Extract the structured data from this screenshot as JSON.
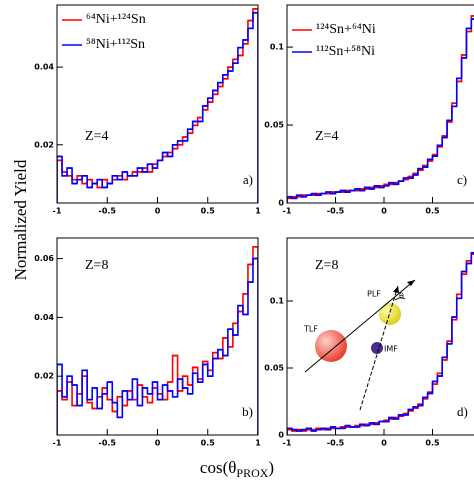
{
  "figure": {
    "ylabel": "Normalized Yield",
    "xlabel_parts": [
      "cos(θ",
      "PROX",
      ")"
    ],
    "diagram": {
      "tlf": "TLF",
      "plf": "PLF",
      "imf": "IMF",
      "angle": "θ"
    }
  },
  "chart_data": [
    {
      "type": "histogram",
      "bins": [
        -1,
        -0.95,
        -0.9,
        -0.85,
        -0.8,
        -0.75,
        -0.7,
        -0.65,
        -0.6,
        -0.55,
        -0.5,
        -0.45,
        -0.4,
        -0.35,
        -0.3,
        -0.25,
        -0.2,
        -0.15,
        -0.1,
        -0.05,
        0,
        0.05,
        0.1,
        0.15,
        0.2,
        0.25,
        0.3,
        0.35,
        0.4,
        0.45,
        0.5,
        0.55,
        0.6,
        0.65,
        0.7,
        0.75,
        0.8,
        0.85,
        0.9,
        0.95,
        1
      ],
      "series": [
        {
          "name": "⁶⁴Ni+¹²⁴Sn",
          "color": "#ff0000",
          "values": [
            0.016,
            0.013,
            0.012,
            0.011,
            0.012,
            0.01,
            0.011,
            0.01,
            0.009,
            0.011,
            0.01,
            0.011,
            0.012,
            0.011,
            0.012,
            0.013,
            0.013,
            0.014,
            0.013,
            0.015,
            0.016,
            0.017,
            0.018,
            0.019,
            0.02,
            0.022,
            0.023,
            0.025,
            0.027,
            0.029,
            0.031,
            0.033,
            0.035,
            0.037,
            0.04,
            0.042,
            0.043,
            0.046,
            0.052,
            0.055
          ]
        },
        {
          "name": "⁵⁸Ni+¹¹²Sn",
          "color": "#0000ff",
          "values": [
            0.017,
            0.012,
            0.014,
            0.01,
            0.011,
            0.012,
            0.009,
            0.01,
            0.011,
            0.009,
            0.01,
            0.012,
            0.011,
            0.013,
            0.012,
            0.012,
            0.014,
            0.013,
            0.015,
            0.014,
            0.016,
            0.018,
            0.017,
            0.02,
            0.021,
            0.021,
            0.024,
            0.026,
            0.026,
            0.03,
            0.032,
            0.034,
            0.036,
            0.038,
            0.039,
            0.041,
            0.045,
            0.047,
            0.05,
            0.054
          ]
        }
      ],
      "xlim": [
        -1,
        1
      ],
      "ylim": [
        0.005,
        0.056
      ],
      "xticks": [
        -1,
        -0.5,
        0,
        0.5,
        1
      ],
      "yticks": [
        0.02,
        0.04
      ],
      "annotations": {
        "z": "Z=4",
        "panel": "a)"
      }
    },
    {
      "type": "histogram",
      "bins": [
        -1,
        -0.95,
        -0.9,
        -0.85,
        -0.8,
        -0.75,
        -0.7,
        -0.65,
        -0.6,
        -0.55,
        -0.5,
        -0.45,
        -0.4,
        -0.35,
        -0.3,
        -0.25,
        -0.2,
        -0.15,
        -0.1,
        -0.05,
        0,
        0.05,
        0.1,
        0.15,
        0.2,
        0.25,
        0.3,
        0.35,
        0.4,
        0.45,
        0.5,
        0.55,
        0.6,
        0.65,
        0.7,
        0.75,
        0.8,
        0.85,
        0.9,
        0.95,
        1
      ],
      "series": [
        {
          "name": "¹²⁴Sn+⁶⁴Ni",
          "color": "#ff0000",
          "values": [
            0.003,
            0.004,
            0.004,
            0.005,
            0.005,
            0.005,
            0.006,
            0.006,
            0.006,
            0.007,
            0.007,
            0.007,
            0.008,
            0.008,
            0.008,
            0.009,
            0.009,
            0.01,
            0.01,
            0.011,
            0.012,
            0.012,
            0.013,
            0.014,
            0.015,
            0.017,
            0.019,
            0.021,
            0.024,
            0.027,
            0.031,
            0.036,
            0.043,
            0.052,
            0.064,
            0.078,
            0.095,
            0.11,
            0.12,
            0.125
          ]
        },
        {
          "name": "¹¹²Sn+⁵⁸Ni",
          "color": "#0000ff",
          "values": [
            0.004,
            0.003,
            0.005,
            0.004,
            0.005,
            0.006,
            0.005,
            0.006,
            0.007,
            0.006,
            0.007,
            0.008,
            0.007,
            0.008,
            0.009,
            0.008,
            0.01,
            0.009,
            0.011,
            0.01,
            0.011,
            0.013,
            0.012,
            0.014,
            0.016,
            0.016,
            0.018,
            0.022,
            0.023,
            0.028,
            0.03,
            0.037,
            0.042,
            0.053,
            0.062,
            0.08,
            0.093,
            0.112,
            0.118,
            0.124
          ]
        }
      ],
      "xlim": [
        -1,
        1
      ],
      "ylim": [
        0,
        0.127
      ],
      "xticks": [
        -1,
        -0.5,
        0,
        0.5
      ],
      "yticks": [
        0,
        0.05,
        0.1
      ],
      "annotations": {
        "z": "Z=4",
        "panel": "c)"
      }
    },
    {
      "type": "histogram",
      "bins": [
        -1,
        -0.95,
        -0.9,
        -0.85,
        -0.8,
        -0.75,
        -0.7,
        -0.65,
        -0.6,
        -0.55,
        -0.5,
        -0.45,
        -0.4,
        -0.35,
        -0.3,
        -0.25,
        -0.2,
        -0.15,
        -0.1,
        -0.05,
        0,
        0.05,
        0.1,
        0.15,
        0.2,
        0.25,
        0.3,
        0.35,
        0.4,
        0.45,
        0.5,
        0.55,
        0.6,
        0.65,
        0.7,
        0.75,
        0.8,
        0.85,
        0.9,
        0.95,
        1
      ],
      "series": [
        {
          "color": "#ff0000",
          "values": [
            0.015,
            0.012,
            0.018,
            0.01,
            0.014,
            0.02,
            0.011,
            0.009,
            0.013,
            0.016,
            0.012,
            0.008,
            0.013,
            0.01,
            0.015,
            0.012,
            0.017,
            0.013,
            0.011,
            0.016,
            0.014,
            0.012,
            0.018,
            0.027,
            0.015,
            0.02,
            0.017,
            0.023,
            0.019,
            0.025,
            0.022,
            0.028,
            0.026,
            0.033,
            0.03,
            0.038,
            0.042,
            0.048,
            0.058,
            0.064
          ]
        },
        {
          "color": "#0000ff",
          "values": [
            0.024,
            0.013,
            0.02,
            0.017,
            0.01,
            0.022,
            0.012,
            0.016,
            0.009,
            0.014,
            0.018,
            0.011,
            0.006,
            0.015,
            0.012,
            0.019,
            0.01,
            0.016,
            0.014,
            0.018,
            0.012,
            0.017,
            0.015,
            0.013,
            0.019,
            0.016,
            0.014,
            0.021,
            0.018,
            0.024,
            0.02,
            0.026,
            0.029,
            0.027,
            0.036,
            0.034,
            0.044,
            0.041,
            0.052,
            0.06
          ]
        }
      ],
      "xlim": [
        -1,
        1
      ],
      "ylim": [
        0,
        0.067
      ],
      "xticks": [
        -1,
        -0.5,
        0,
        0.5,
        1
      ],
      "yticks": [
        0.02,
        0.04,
        0.06
      ],
      "annotations": {
        "z": "Z=8",
        "panel": "b)"
      }
    },
    {
      "type": "histogram",
      "bins": [
        -1,
        -0.95,
        -0.9,
        -0.85,
        -0.8,
        -0.75,
        -0.7,
        -0.65,
        -0.6,
        -0.55,
        -0.5,
        -0.45,
        -0.4,
        -0.35,
        -0.3,
        -0.25,
        -0.2,
        -0.15,
        -0.1,
        -0.05,
        0,
        0.05,
        0.1,
        0.15,
        0.2,
        0.25,
        0.3,
        0.35,
        0.4,
        0.45,
        0.5,
        0.55,
        0.6,
        0.65,
        0.7,
        0.75,
        0.8,
        0.85,
        0.9,
        0.95,
        1
      ],
      "series": [
        {
          "color": "#ff0000",
          "values": [
            0.004,
            0.003,
            0.004,
            0.003,
            0.004,
            0.004,
            0.005,
            0.004,
            0.005,
            0.005,
            0.005,
            0.006,
            0.006,
            0.006,
            0.007,
            0.007,
            0.008,
            0.008,
            0.009,
            0.01,
            0.011,
            0.012,
            0.013,
            0.014,
            0.016,
            0.018,
            0.02,
            0.023,
            0.027,
            0.032,
            0.038,
            0.046,
            0.056,
            0.07,
            0.086,
            0.105,
            0.12,
            0.13,
            0.135,
            0.138
          ]
        },
        {
          "color": "#0000ff",
          "values": [
            0.005,
            0.004,
            0.003,
            0.004,
            0.005,
            0.003,
            0.004,
            0.005,
            0.004,
            0.006,
            0.005,
            0.005,
            0.007,
            0.006,
            0.006,
            0.008,
            0.007,
            0.009,
            0.008,
            0.01,
            0.01,
            0.013,
            0.012,
            0.015,
            0.015,
            0.019,
            0.021,
            0.022,
            0.028,
            0.031,
            0.04,
            0.044,
            0.058,
            0.068,
            0.088,
            0.102,
            0.122,
            0.128,
            0.136,
            0.14
          ]
        }
      ],
      "xlim": [
        -1,
        1
      ],
      "ylim": [
        0,
        0.147
      ],
      "xticks": [
        -1,
        -0.5,
        0,
        0.5
      ],
      "yticks": [
        0,
        0.05,
        0.1
      ],
      "annotations": {
        "z": "Z=8",
        "panel": "d)"
      }
    }
  ]
}
